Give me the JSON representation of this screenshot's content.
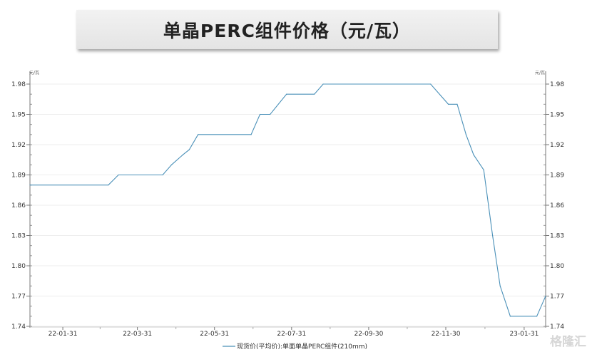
{
  "chart_data": {
    "type": "line",
    "title": "单晶PERC组件价格（元/瓦）",
    "unit_left": "元/瓦",
    "unit_right": "元/瓦",
    "xlabel": "",
    "ylabel": "",
    "ylim": [
      1.74,
      1.98
    ],
    "yticks": [
      "1.74",
      "1.77",
      "1.80",
      "1.83",
      "1.86",
      "1.89",
      "1.92",
      "1.95",
      "1.98"
    ],
    "xlim": [
      "2022-01-05",
      "2023-02-17"
    ],
    "xticks": [
      {
        "label": "22-01-31",
        "date": "2022-01-31"
      },
      {
        "label": "22-03-31",
        "date": "2022-03-31"
      },
      {
        "label": "22-05-31",
        "date": "2022-05-31"
      },
      {
        "label": "22-07-31",
        "date": "2022-07-31"
      },
      {
        "label": "22-09-30",
        "date": "2022-09-30"
      },
      {
        "label": "22-11-30",
        "date": "2022-11-30"
      },
      {
        "label": "23-01-31",
        "date": "2023-01-31"
      }
    ],
    "grid": true,
    "legend_position": "bottom",
    "series": [
      {
        "name": "现货价(平均价):单面单晶PERC组件(210mm)",
        "color": "#4a90b8",
        "points": [
          [
            "2022-01-05",
            1.88
          ],
          [
            "2022-03-08",
            1.88
          ],
          [
            "2022-03-16",
            1.89
          ],
          [
            "2022-04-20",
            1.89
          ],
          [
            "2022-04-27",
            1.9
          ],
          [
            "2022-05-06",
            1.91
          ],
          [
            "2022-05-11",
            1.915
          ],
          [
            "2022-05-18",
            1.93
          ],
          [
            "2022-06-29",
            1.93
          ],
          [
            "2022-07-06",
            1.95
          ],
          [
            "2022-07-14",
            1.95
          ],
          [
            "2022-07-27",
            1.97
          ],
          [
            "2022-08-18",
            1.97
          ],
          [
            "2022-08-25",
            1.98
          ],
          [
            "2022-11-18",
            1.98
          ],
          [
            "2022-12-02",
            1.96
          ],
          [
            "2022-12-09",
            1.96
          ],
          [
            "2022-12-16",
            1.93
          ],
          [
            "2022-12-22",
            1.91
          ],
          [
            "2022-12-30",
            1.895
          ],
          [
            "2023-01-06",
            1.83
          ],
          [
            "2023-01-12",
            1.78
          ],
          [
            "2023-01-20",
            1.75
          ],
          [
            "2023-02-10",
            1.75
          ],
          [
            "2023-02-17",
            1.77
          ]
        ]
      }
    ]
  },
  "watermark": "格隆汇"
}
